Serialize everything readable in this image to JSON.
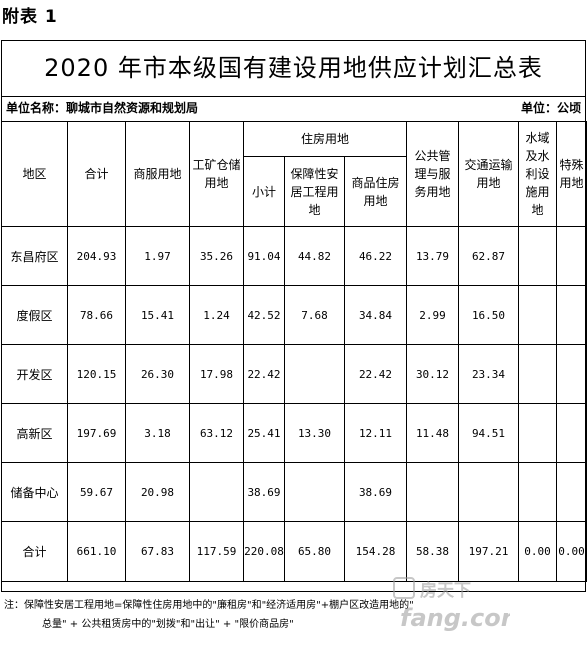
{
  "attachment_label": "附表 1",
  "title": "2020 年市本级国有建设用地供应计划汇总表",
  "unit_name": "单位名称：聊城市自然资源和规划局",
  "unit_measure": "单位：公顷",
  "headers": {
    "region": "地区",
    "total": "合计",
    "commercial": "商服用地",
    "industrial": "工矿仓储用地",
    "housing_group": "住房用地",
    "subtotal": "小计",
    "affordable": "保障性安居工程用地",
    "commodity": "商品住房用地",
    "public": "公共管理与服务用地",
    "transport": "交通运输用地",
    "water": "水域及水利设施用地",
    "special": "特殊用地"
  },
  "rows": [
    {
      "region": "东昌府区",
      "total": "204.93",
      "commercial": "1.97",
      "industrial": "35.26",
      "subtotal": "91.04",
      "affordable": "44.82",
      "commodity": "46.22",
      "public": "13.79",
      "transport": "62.87",
      "water": "",
      "special": ""
    },
    {
      "region": "度假区",
      "total": "78.66",
      "commercial": "15.41",
      "industrial": "1.24",
      "subtotal": "42.52",
      "affordable": "7.68",
      "commodity": "34.84",
      "public": "2.99",
      "transport": "16.50",
      "water": "",
      "special": ""
    },
    {
      "region": "开发区",
      "total": "120.15",
      "commercial": "26.30",
      "industrial": "17.98",
      "subtotal": "22.42",
      "affordable": "",
      "commodity": "22.42",
      "public": "30.12",
      "transport": "23.34",
      "water": "",
      "special": ""
    },
    {
      "region": "高新区",
      "total": "197.69",
      "commercial": "3.18",
      "industrial": "63.12",
      "subtotal": "25.41",
      "affordable": "13.30",
      "commodity": "12.11",
      "public": "11.48",
      "transport": "94.51",
      "water": "",
      "special": ""
    },
    {
      "region": "储备中心",
      "total": "59.67",
      "commercial": "20.98",
      "industrial": "",
      "subtotal": "38.69",
      "affordable": "",
      "commodity": "38.69",
      "public": "",
      "transport": "",
      "water": "",
      "special": ""
    },
    {
      "region": "合计",
      "total": "661.10",
      "commercial": "67.83",
      "industrial": "117.59",
      "subtotal": "220.08",
      "affordable": "65.80",
      "commodity": "154.28",
      "public": "58.38",
      "transport": "197.21",
      "water": "0.00",
      "special": "0.00"
    }
  ],
  "note_line1": "注：保障性安居工程用地=保障性住房用地中的\"廉租房\"和\"经济适用房\"+棚户区改造用地的\"",
  "note_line2": "总量\" + 公共租赁房中的\"划拨\"和\"出让\" + \"限价商品房\"",
  "watermark": {
    "brand": "房天下",
    "domain": "fang.com",
    "color": "#9a9a9a"
  }
}
